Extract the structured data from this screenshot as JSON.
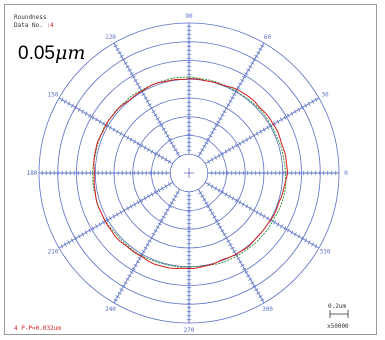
{
  "header": {
    "title": "Roundness",
    "data_no_label": "Data No.",
    "data_no_value": ":4"
  },
  "scale_label": {
    "value": "0.05",
    "unit": "μm"
  },
  "footer": {
    "result": "4 P-P=0.032um",
    "scale_bar_value": "0.2um",
    "magnification": "x50000"
  },
  "colors": {
    "grid": "#5a6fc6",
    "trace_measured": "#d21f1f",
    "trace_reference": "#2a8a2a"
  },
  "chart_data": {
    "type": "polar",
    "angle_labels": [
      "90",
      "60",
      "30",
      "0",
      "330",
      "300",
      "270",
      "240",
      "210",
      "180",
      "150",
      "120"
    ],
    "angles_deg": [
      90,
      60,
      30,
      0,
      330,
      300,
      270,
      240,
      210,
      180,
      150,
      120
    ],
    "ring_count": 8,
    "ring_spacing": "0.05μm",
    "series": [
      {
        "role": "measured_profile",
        "color": "#d21f1f",
        "mean_ring": 5.1,
        "peak_to_valley_um": 0.032
      },
      {
        "role": "reference_circle",
        "color": "#2a8a2a",
        "mean_ring": 5.1
      }
    ]
  }
}
